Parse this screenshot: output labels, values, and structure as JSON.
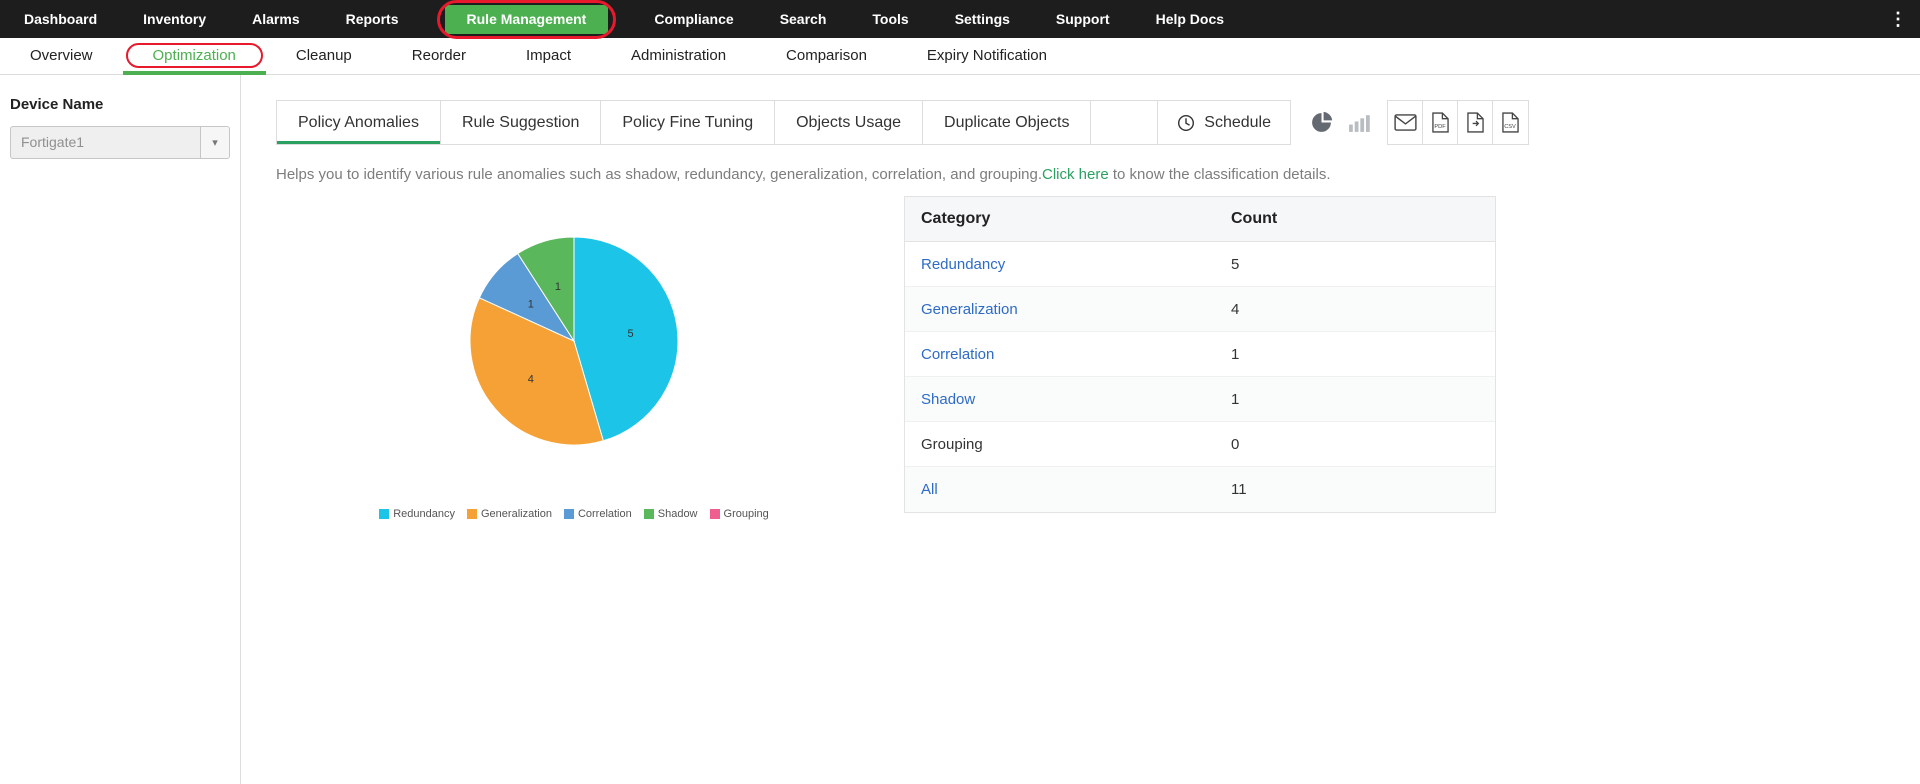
{
  "topnav": {
    "items": [
      {
        "label": "Dashboard"
      },
      {
        "label": "Inventory"
      },
      {
        "label": "Alarms"
      },
      {
        "label": "Reports"
      },
      {
        "label": "Rule Management",
        "active": true,
        "annotated": true
      },
      {
        "label": "Compliance"
      },
      {
        "label": "Search"
      },
      {
        "label": "Tools"
      },
      {
        "label": "Settings"
      },
      {
        "label": "Support"
      },
      {
        "label": "Help Docs"
      }
    ]
  },
  "subnav": {
    "items": [
      {
        "label": "Overview"
      },
      {
        "label": "Optimization",
        "active": true,
        "annotated": true
      },
      {
        "label": "Cleanup"
      },
      {
        "label": "Reorder"
      },
      {
        "label": "Impact"
      },
      {
        "label": "Administration"
      },
      {
        "label": "Comparison"
      },
      {
        "label": "Expiry Notification"
      }
    ]
  },
  "sidebar": {
    "device_name_label": "Device Name",
    "device_select": {
      "value": "Fortigate1"
    }
  },
  "toolbar": {
    "tabs": [
      {
        "label": "Policy Anomalies",
        "active": true
      },
      {
        "label": "Rule Suggestion"
      },
      {
        "label": "Policy Fine Tuning"
      },
      {
        "label": "Objects Usage"
      },
      {
        "label": "Duplicate Objects"
      }
    ],
    "schedule_label": "Schedule",
    "icons": [
      "clock-icon",
      "pie-chart-toggle-icon",
      "bar-chart-toggle-icon",
      "email-icon",
      "pdf-export-icon",
      "file-export-icon",
      "csv-export-icon"
    ]
  },
  "helper": {
    "text_before": "Helps you to identify various rule anomalies such as shadow, redundancy, generalization, correlation, and grouping.",
    "link_text": "Click here",
    "text_after": " to know the classification details."
  },
  "chart_data": {
    "type": "pie",
    "labels": [
      "Redundancy",
      "Generalization",
      "Correlation",
      "Shadow",
      "Grouping"
    ],
    "values": [
      5,
      4,
      1,
      1,
      0
    ],
    "colors": [
      "#1cc4e8",
      "#f5a135",
      "#5b9bd5",
      "#5bb75b",
      "#ef5e8e"
    ],
    "total": 11,
    "start_angle_deg": 0,
    "direction": "clockwise",
    "legend_position": "bottom",
    "value_labels_shown": true
  },
  "table": {
    "columns": [
      "Category",
      "Count"
    ],
    "rows": [
      {
        "category": "Redundancy",
        "count": "5",
        "link": true
      },
      {
        "category": "Generalization",
        "count": "4",
        "link": true
      },
      {
        "category": "Correlation",
        "count": "1",
        "link": true
      },
      {
        "category": "Shadow",
        "count": "1",
        "link": true
      },
      {
        "category": "Grouping",
        "count": "0",
        "link": false
      },
      {
        "category": "All",
        "count": "11",
        "link": true
      }
    ]
  },
  "colors": {
    "brand_green": "#4caf50",
    "active_green": "#2aa160",
    "link_blue": "#2e6bc6",
    "annotation_red": "#e8192c"
  }
}
